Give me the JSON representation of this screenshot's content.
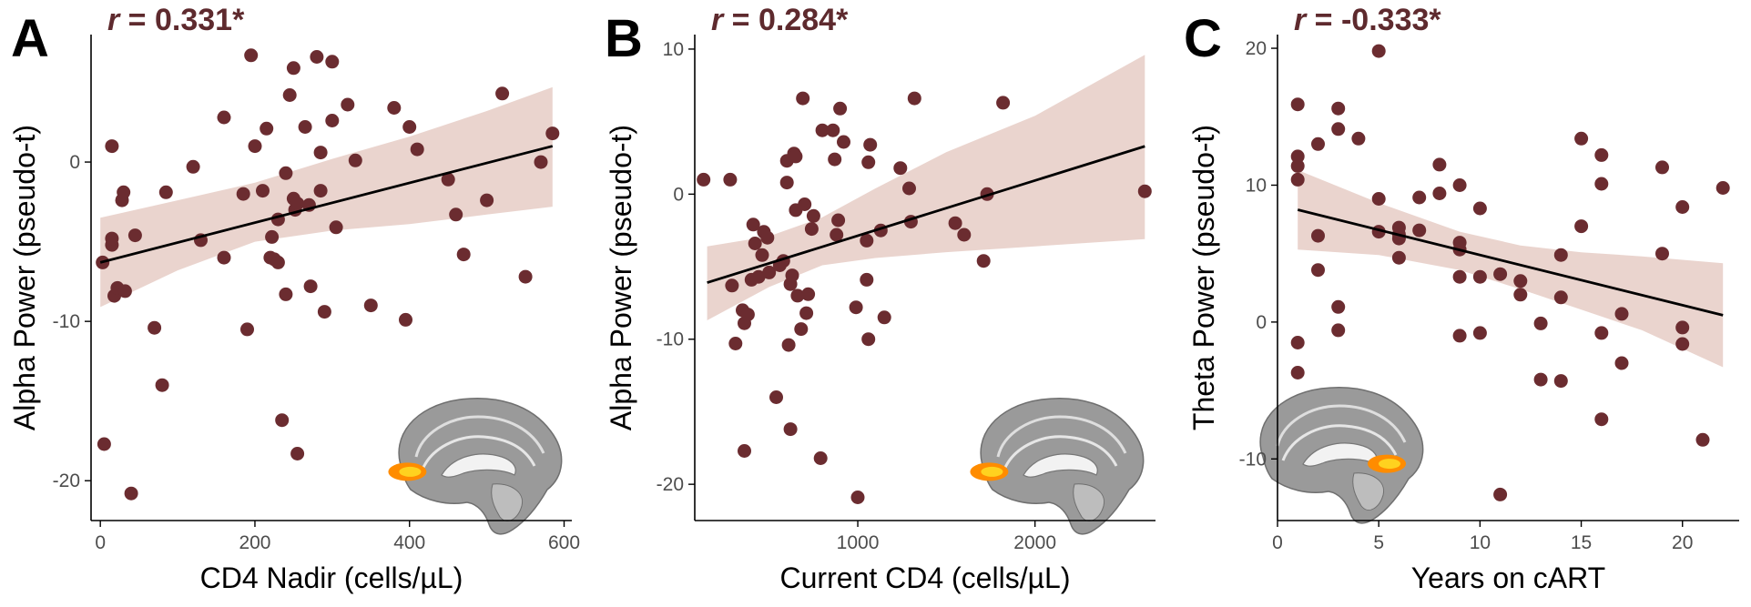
{
  "colors": {
    "point": "#6b2c30",
    "band": "#e3c5bd",
    "line": "#000000",
    "axis": "#000000"
  },
  "brain_icon": "brain-sagittal-slice-icon",
  "chart_data": [
    {
      "type": "scatter",
      "panel_letter": "A",
      "r_label_prefix": "r",
      "r_label_value": " = 0.331*",
      "xlabel": "CD4 Nadir (cells/µL)",
      "ylabel": "Alpha Power (pseudo-t)",
      "xlim": [
        -12,
        610
      ],
      "ylim": [
        -22.5,
        8
      ],
      "xticks": [
        0,
        200,
        400,
        600
      ],
      "xtick_labels": [
        "0",
        "200",
        "400",
        "600"
      ],
      "yticks": [
        -20,
        -10,
        0
      ],
      "ytick_labels": [
        "-20",
        "-10",
        "0"
      ],
      "fit": {
        "x": [
          0,
          585
        ],
        "y": [
          -6.3,
          1.0
        ]
      },
      "ci_band": {
        "x": [
          0,
          100,
          200,
          300,
          400,
          500,
          585
        ],
        "lower": [
          -9.1,
          -6.8,
          -5.0,
          -4.3,
          -3.9,
          -3.3,
          -2.8
        ],
        "upper": [
          -3.5,
          -2.4,
          -1.3,
          0.2,
          1.6,
          3.2,
          4.7
        ]
      },
      "points": [
        [
          3,
          -6.3
        ],
        [
          15,
          -5.2
        ],
        [
          15,
          -4.8
        ],
        [
          18,
          -8.4
        ],
        [
          22,
          -7.9
        ],
        [
          28,
          -2.4
        ],
        [
          30,
          -1.9
        ],
        [
          32,
          -8.1
        ],
        [
          15,
          1.0
        ],
        [
          5,
          -17.7
        ],
        [
          45,
          -4.6
        ],
        [
          40,
          -20.8
        ],
        [
          70,
          -10.4
        ],
        [
          80,
          -14.0
        ],
        [
          85,
          -1.9
        ],
        [
          120,
          -0.3
        ],
        [
          130,
          -4.9
        ],
        [
          160,
          2.8
        ],
        [
          160,
          -6.0
        ],
        [
          185,
          -2.0
        ],
        [
          190,
          -10.5
        ],
        [
          195,
          6.7
        ],
        [
          200,
          1.0
        ],
        [
          210,
          -1.8
        ],
        [
          215,
          2.1
        ],
        [
          220,
          -6.0
        ],
        [
          225,
          -6.1
        ],
        [
          222,
          -4.7
        ],
        [
          230,
          -3.6
        ],
        [
          230,
          -6.3
        ],
        [
          240,
          -8.3
        ],
        [
          235,
          -16.2
        ],
        [
          240,
          -0.7
        ],
        [
          245,
          4.2
        ],
        [
          250,
          5.9
        ],
        [
          250,
          -2.3
        ],
        [
          252,
          -3.0
        ],
        [
          255,
          -2.6
        ],
        [
          255,
          -18.3
        ],
        [
          265,
          2.2
        ],
        [
          270,
          -2.7
        ],
        [
          272,
          -7.8
        ],
        [
          280,
          6.6
        ],
        [
          285,
          0.6
        ],
        [
          285,
          -1.8
        ],
        [
          290,
          -9.4
        ],
        [
          300,
          2.6
        ],
        [
          300,
          6.3
        ],
        [
          305,
          -4.1
        ],
        [
          320,
          3.6
        ],
        [
          330,
          0.1
        ],
        [
          350,
          -9.0
        ],
        [
          380,
          3.4
        ],
        [
          395,
          -9.9
        ],
        [
          400,
          2.2
        ],
        [
          410,
          0.8
        ],
        [
          450,
          -1.1
        ],
        [
          460,
          -3.3
        ],
        [
          470,
          -5.8
        ],
        [
          500,
          -2.4
        ],
        [
          520,
          4.3
        ],
        [
          550,
          -7.2
        ],
        [
          570,
          0.0
        ],
        [
          585,
          1.8
        ]
      ],
      "brain_focus": [
        0.08,
        0.54
      ]
    },
    {
      "type": "scatter",
      "panel_letter": "B",
      "r_label_prefix": "r",
      "r_label_value": " = 0.284*",
      "xlabel": "Current CD4 (cells/µL)",
      "ylabel": "Alpha Power (pseudo-t)",
      "xlim": [
        80,
        2680
      ],
      "ylim": [
        -22.5,
        11
      ],
      "xticks": [
        1000,
        2000
      ],
      "xtick_labels": [
        "1000",
        "2000"
      ],
      "yticks": [
        -20,
        -10,
        0,
        10
      ],
      "ytick_labels": [
        "-20",
        "-10",
        "0",
        "10"
      ],
      "fit": {
        "x": [
          150,
          2620
        ],
        "y": [
          -6.1,
          3.3
        ]
      },
      "ci_band": {
        "x": [
          150,
          500,
          800,
          1100,
          1500,
          2000,
          2620
        ],
        "lower": [
          -8.7,
          -6.4,
          -4.9,
          -4.4,
          -4.0,
          -3.6,
          -3.1
        ],
        "upper": [
          -3.6,
          -2.9,
          -1.6,
          0.4,
          2.9,
          5.4,
          9.6
        ]
      },
      "points": [
        [
          130,
          1.0
        ],
        [
          280,
          1.0
        ],
        [
          290,
          -6.3
        ],
        [
          310,
          -10.3
        ],
        [
          350,
          -8.0
        ],
        [
          360,
          -17.7
        ],
        [
          360,
          -8.9
        ],
        [
          380,
          -8.3
        ],
        [
          400,
          -5.9
        ],
        [
          410,
          -2.1
        ],
        [
          420,
          -3.4
        ],
        [
          440,
          -5.7
        ],
        [
          460,
          -4.2
        ],
        [
          470,
          -2.6
        ],
        [
          490,
          -3.0
        ],
        [
          500,
          -5.4
        ],
        [
          540,
          -14.0
        ],
        [
          560,
          -4.9
        ],
        [
          580,
          -4.6
        ],
        [
          600,
          2.3
        ],
        [
          600,
          0.8
        ],
        [
          610,
          -10.4
        ],
        [
          620,
          -16.2
        ],
        [
          620,
          -6.2
        ],
        [
          630,
          -5.6
        ],
        [
          640,
          2.8
        ],
        [
          650,
          -1.1
        ],
        [
          650,
          2.6
        ],
        [
          660,
          -7.0
        ],
        [
          680,
          -9.3
        ],
        [
          690,
          6.6
        ],
        [
          700,
          -0.7
        ],
        [
          710,
          -8.2
        ],
        [
          720,
          -6.9
        ],
        [
          740,
          -2.4
        ],
        [
          750,
          -1.5
        ],
        [
          790,
          -18.2
        ],
        [
          800,
          4.4
        ],
        [
          860,
          4.4
        ],
        [
          870,
          2.4
        ],
        [
          880,
          -2.8
        ],
        [
          890,
          -1.8
        ],
        [
          900,
          5.9
        ],
        [
          920,
          3.6
        ],
        [
          990,
          -7.8
        ],
        [
          1000,
          -20.9
        ],
        [
          1050,
          -5.9
        ],
        [
          1050,
          -3.2
        ],
        [
          1060,
          2.2
        ],
        [
          1060,
          -10.0
        ],
        [
          1070,
          3.4
        ],
        [
          1130,
          -2.5
        ],
        [
          1150,
          -8.5
        ],
        [
          1240,
          1.8
        ],
        [
          1290,
          0.4
        ],
        [
          1300,
          -1.9
        ],
        [
          1320,
          6.6
        ],
        [
          1550,
          -2.0
        ],
        [
          1600,
          -2.8
        ],
        [
          1710,
          -4.6
        ],
        [
          1730,
          0.0
        ],
        [
          1820,
          6.3
        ],
        [
          2620,
          0.2
        ]
      ],
      "brain_focus": [
        0.08,
        0.54
      ]
    },
    {
      "type": "scatter",
      "panel_letter": "C",
      "r_label_prefix": "r",
      "r_label_value": " = -0.333*",
      "xlabel": "Years on cART",
      "ylabel": "Theta Power (pseudo-t)",
      "xlim": [
        0,
        22.8
      ],
      "ylim": [
        -14.5,
        21
      ],
      "xticks": [
        0,
        5,
        10,
        15,
        20
      ],
      "xtick_labels": [
        "0",
        "5",
        "10",
        "15",
        "20"
      ],
      "yticks": [
        -10,
        0,
        10,
        20
      ],
      "ytick_labels": [
        "-10",
        "0",
        "10",
        "20"
      ],
      "fit": {
        "x": [
          1,
          22
        ],
        "y": [
          8.2,
          0.5
        ]
      },
      "ci_band": {
        "x": [
          1,
          5,
          9,
          12,
          15,
          18,
          22
        ],
        "lower": [
          5.3,
          4.9,
          3.8,
          2.4,
          0.9,
          -0.6,
          -3.3
        ],
        "upper": [
          11.1,
          8.7,
          6.6,
          5.6,
          5.1,
          4.8,
          4.3
        ]
      },
      "points": [
        [
          1,
          11.4
        ],
        [
          1,
          10.4
        ],
        [
          1,
          12.1
        ],
        [
          1,
          15.9
        ],
        [
          1,
          -1.5
        ],
        [
          1,
          -3.7
        ],
        [
          2,
          13.0
        ],
        [
          2,
          6.3
        ],
        [
          2,
          3.8
        ],
        [
          3,
          14.1
        ],
        [
          3,
          15.6
        ],
        [
          3,
          1.1
        ],
        [
          3,
          -0.6
        ],
        [
          4,
          13.4
        ],
        [
          5,
          19.8
        ],
        [
          5,
          9.0
        ],
        [
          5,
          6.6
        ],
        [
          6,
          6.4
        ],
        [
          6,
          6.1
        ],
        [
          6,
          4.7
        ],
        [
          6,
          6.9
        ],
        [
          7,
          9.1
        ],
        [
          7,
          6.7
        ],
        [
          8,
          11.5
        ],
        [
          8,
          9.4
        ],
        [
          9,
          10.0
        ],
        [
          9,
          5.8
        ],
        [
          9,
          5.3
        ],
        [
          9,
          3.3
        ],
        [
          9,
          -1.0
        ],
        [
          10,
          8.3
        ],
        [
          10,
          3.3
        ],
        [
          10,
          -0.8
        ],
        [
          11,
          3.5
        ],
        [
          11,
          -12.6
        ],
        [
          12,
          3.0
        ],
        [
          12,
          2.0
        ],
        [
          13,
          -4.2
        ],
        [
          13,
          -0.1
        ],
        [
          14,
          4.9
        ],
        [
          14,
          1.8
        ],
        [
          14,
          -4.3
        ],
        [
          15,
          13.4
        ],
        [
          15,
          7.0
        ],
        [
          16,
          12.2
        ],
        [
          16,
          10.1
        ],
        [
          16,
          -0.8
        ],
        [
          16,
          -7.1
        ],
        [
          17,
          0.6
        ],
        [
          17,
          -3.0
        ],
        [
          19,
          11.3
        ],
        [
          19,
          5.0
        ],
        [
          20,
          8.4
        ],
        [
          20,
          -0.4
        ],
        [
          20,
          -1.6
        ],
        [
          21,
          -8.6
        ],
        [
          22,
          9.8
        ]
      ],
      "brain_focus": [
        0.8,
        0.56
      ]
    }
  ]
}
